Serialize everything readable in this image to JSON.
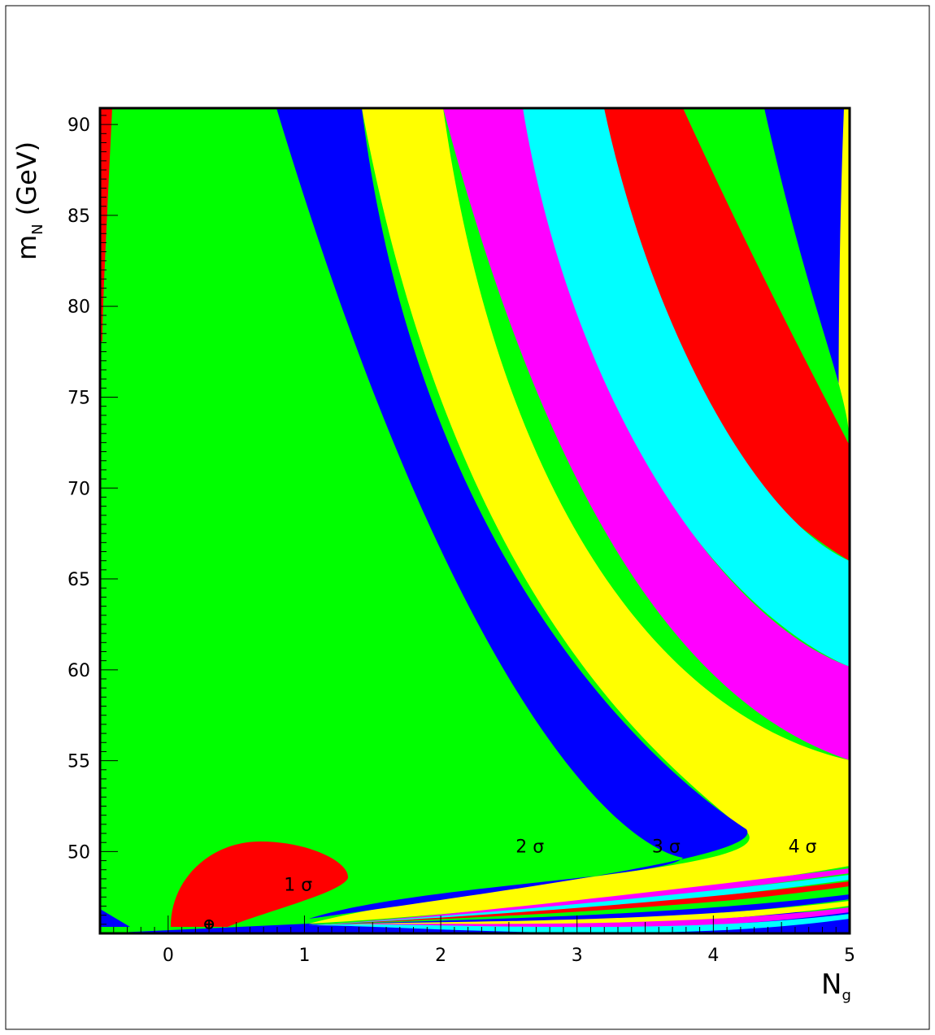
{
  "chart_data": {
    "type": "contour",
    "title": "",
    "xlabel": "N",
    "xlabel_sub": "g",
    "ylabel_main": "m",
    "ylabel_sub": "N",
    "ylabel_unit": " (GeV)",
    "xlim": [
      -0.5,
      5.0
    ],
    "ylim": [
      45.5,
      90.9
    ],
    "x_ticks": [
      0,
      1,
      2,
      3,
      4,
      5
    ],
    "y_ticks": [
      50,
      55,
      60,
      65,
      70,
      75,
      80,
      85,
      90
    ],
    "grid": false,
    "level_colors": [
      "#ff0000",
      "#00ff00",
      "#0000ff",
      "#ffff00",
      "#ff00ff",
      "#00ffff",
      "#ff0000",
      "#00ff00",
      "#0000ff",
      "#ffff00"
    ],
    "annotations": [
      {
        "text": "1 σ",
        "x": 0.85,
        "y": 48.2
      },
      {
        "text": "2 σ",
        "x": 2.55,
        "y": 50.3
      },
      {
        "text": "3 σ",
        "x": 3.55,
        "y": 50.3
      },
      {
        "text": "4 σ",
        "x": 4.55,
        "y": 50.3
      }
    ],
    "best_fit": {
      "x": 0.3,
      "y": 46.0
    }
  }
}
